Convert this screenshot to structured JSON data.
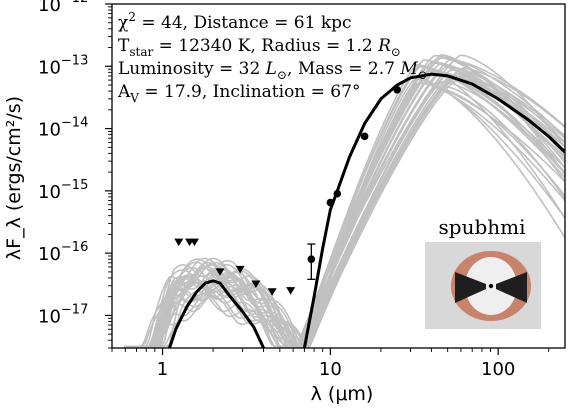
{
  "chart_data": {
    "type": "line",
    "title": "",
    "xlabel": "λ (μm)",
    "ylabel": "λF_λ (ergs/cm²/s)",
    "xscale": "log",
    "yscale": "log",
    "xlim": [
      0.5,
      250
    ],
    "ylim": [
      3e-18,
      1e-12
    ],
    "x_ticks": [
      {
        "value": 1,
        "label": "1"
      },
      {
        "value": 10,
        "label": "10"
      },
      {
        "value": 100,
        "label": "100"
      }
    ],
    "y_ticks": [
      {
        "value": 1e-12,
        "label": "10",
        "exp": "−12"
      },
      {
        "value": 1e-13,
        "label": "10",
        "exp": "−13"
      },
      {
        "value": 1e-14,
        "label": "10",
        "exp": "−14"
      },
      {
        "value": 1e-15,
        "label": "10",
        "exp": "−15"
      },
      {
        "value": 1e-16,
        "label": "10",
        "exp": "−16"
      },
      {
        "value": 1e-17,
        "label": "10",
        "exp": "−17"
      }
    ],
    "grid": false,
    "annotations": {
      "line1": {
        "chi_label": "χ",
        "chi_exp": "2",
        "chi_val": " = 44, Distance = 61 kpc"
      },
      "line2": {
        "t_label": "T",
        "t_sub": "star",
        "t_rest": " = 12340 K, Radius = 1.2 ",
        "r_sym": "R",
        "sun": "⊙"
      },
      "line3": {
        "lum_text": "Luminosity = 32 ",
        "l_sym": "L",
        "sun": "⊙",
        "mass_text": ", Mass = 2.7 ",
        "m_sym": "M"
      },
      "line4": {
        "av_label": "A",
        "av_sub": "V",
        "av_rest": " = 17.9, Inclination = 67°"
      }
    },
    "model_name": "spubhmi",
    "colors": {
      "best_fit": "#000000",
      "other_fits": "#c0c0c0",
      "inset_bg": "#d8d8d8",
      "disk": "#c8836c"
    },
    "best_fit": [
      [
        7.0,
        3e-18
      ],
      [
        8,
        2e-17
      ],
      [
        9,
        1.2e-16
      ],
      [
        10,
        5e-16
      ],
      [
        11,
        1e-15
      ],
      [
        13,
        3.5e-15
      ],
      [
        16,
        1.2e-14
      ],
      [
        20,
        3e-14
      ],
      [
        25,
        5e-14
      ],
      [
        30,
        6.5e-14
      ],
      [
        40,
        7.5e-14
      ],
      [
        50,
        7e-14
      ],
      [
        70,
        5.2e-14
      ],
      [
        100,
        3e-14
      ],
      [
        150,
        1.4e-14
      ],
      [
        200,
        7.5e-15
      ],
      [
        250,
        4.2e-15
      ]
    ],
    "best_fit_nir": [
      [
        1.1,
        3e-18
      ],
      [
        1.2,
        6e-18
      ],
      [
        1.4,
        1.4e-17
      ],
      [
        1.6,
        2.4e-17
      ],
      [
        1.8,
        3.3e-17
      ],
      [
        2.0,
        3.6e-17
      ],
      [
        2.2,
        3.3e-17
      ],
      [
        2.5,
        2.1e-17
      ],
      [
        3.0,
        1.15e-17
      ],
      [
        3.5,
        6.5e-18
      ],
      [
        4.0,
        3e-18
      ]
    ],
    "detections": [
      {
        "x": 7.7,
        "y": 8e-17,
        "err": [
          3.8e-17,
          1.4e-16
        ]
      },
      {
        "x": 10.0,
        "y": 6.5e-16
      },
      {
        "x": 11.0,
        "y": 9e-16
      },
      {
        "x": 16.0,
        "y": 7.5e-15
      },
      {
        "x": 25.0,
        "y": 4.2e-14
      }
    ],
    "upper_limits": [
      {
        "x": 1.25,
        "y": 1.5e-16
      },
      {
        "x": 1.45,
        "y": 1.5e-16
      },
      {
        "x": 1.55,
        "y": 1.5e-16
      },
      {
        "x": 2.2,
        "y": 5e-17
      },
      {
        "x": 2.9,
        "y": 5.5e-17
      },
      {
        "x": 3.6,
        "y": 3.2e-17
      },
      {
        "x": 4.5,
        "y": 2.4e-17
      },
      {
        "x": 5.8,
        "y": 2.5e-17
      }
    ]
  }
}
